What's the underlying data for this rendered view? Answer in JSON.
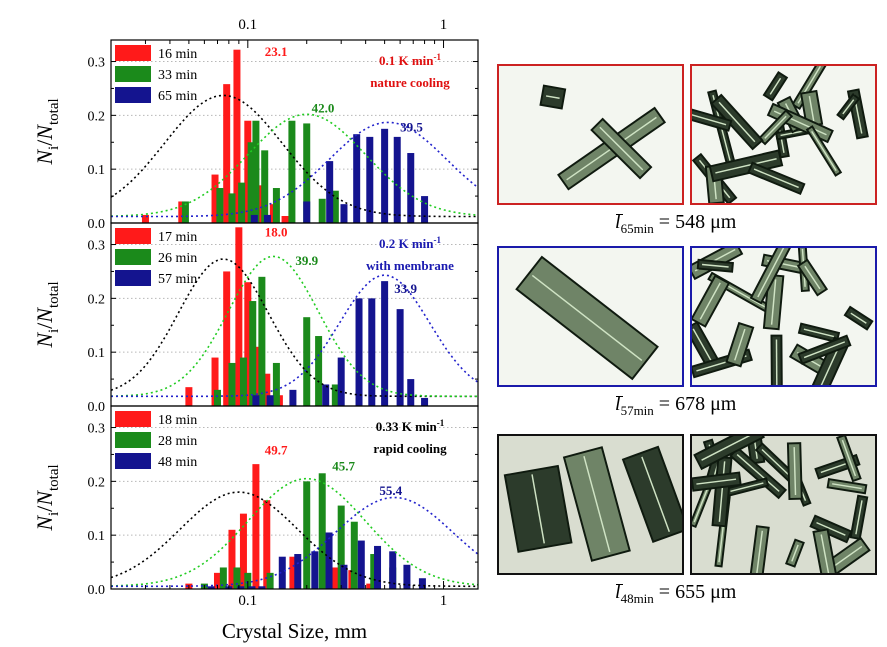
{
  "figure": {
    "x_axis_label": "Crystal Size, mm",
    "y_axis_label": {
      "N": "N",
      "i": "i",
      "slash": "/",
      "N2": "N",
      "total": "total"
    },
    "top_ticks": [
      "0.1",
      "1"
    ],
    "bottom_ticks": [
      "0.1",
      "1"
    ],
    "y_ticks": [
      "0.0",
      "0.1",
      "0.2",
      "0.3"
    ]
  },
  "chart_data": [
    {
      "type": "bar",
      "panel": "top",
      "xscale": "log",
      "xlim": [
        0.02,
        1.5
      ],
      "ylim": [
        0,
        0.34
      ],
      "grid": "horizontal dotted",
      "legend_placement": "top-left",
      "condition_lines": [
        "0.1 K min-1",
        "nature cooling"
      ],
      "series": [
        {
          "name": "16 min",
          "color": "#ff1a1a",
          "x": [
            0.03,
            0.046,
            0.068,
            0.078,
            0.088,
            0.1,
            0.117,
            0.135,
            0.155
          ],
          "values": [
            0.015,
            0.04,
            0.09,
            0.258,
            0.322,
            0.19,
            0.07,
            0.035,
            0.013
          ],
          "peak_label": "23.1"
        },
        {
          "name": "33 min",
          "color": "#1b8a1b",
          "x": [
            0.048,
            0.072,
            0.083,
            0.093,
            0.104,
            0.11,
            0.122,
            0.14,
            0.168,
            0.2,
            0.24,
            0.28
          ],
          "values": [
            0.04,
            0.065,
            0.055,
            0.075,
            0.15,
            0.19,
            0.135,
            0.065,
            0.19,
            0.185,
            0.045,
            0.06
          ],
          "peak_label": "42.0"
        },
        {
          "name": "65 min",
          "color": "#14148f",
          "x": [
            0.108,
            0.126,
            0.2,
            0.262,
            0.31,
            0.36,
            0.42,
            0.5,
            0.58,
            0.68,
            0.8
          ],
          "values": [
            0.015,
            0.015,
            0.04,
            0.115,
            0.035,
            0.165,
            0.16,
            0.175,
            0.16,
            0.13,
            0.05
          ],
          "peak_label": "39.5"
        }
      ],
      "fit_curves": [
        {
          "series": "16 min",
          "color": "#000000",
          "mode": 0.075,
          "width": 0.3,
          "amp": 0.225,
          "base": 0.012
        },
        {
          "series": "33 min",
          "color": "#22cc22",
          "mode": 0.2,
          "width": 0.3,
          "amp": 0.19,
          "base": 0.012
        },
        {
          "series": "65 min",
          "color": "#2323cc",
          "mode": 0.52,
          "width": 0.3,
          "amp": 0.175,
          "base": 0.012
        }
      ]
    },
    {
      "type": "bar",
      "panel": "middle",
      "xscale": "log",
      "xlim": [
        0.02,
        1.5
      ],
      "ylim": [
        0,
        0.34
      ],
      "grid": "horizontal dotted",
      "legend_placement": "top-left",
      "condition_lines": [
        "0.2 K min-1",
        "with membrane"
      ],
      "series": [
        {
          "name": "17 min",
          "color": "#ff1a1a",
          "x": [
            0.05,
            0.068,
            0.078,
            0.09,
            0.1,
            0.112,
            0.125,
            0.145
          ],
          "values": [
            0.035,
            0.09,
            0.25,
            0.332,
            0.23,
            0.11,
            0.06,
            0.02
          ],
          "peak_label": "18.0"
        },
        {
          "name": "26 min",
          "color": "#1b8a1b",
          "x": [
            0.07,
            0.083,
            0.095,
            0.106,
            0.118,
            0.14,
            0.2,
            0.23,
            0.28
          ],
          "values": [
            0.03,
            0.08,
            0.09,
            0.195,
            0.24,
            0.08,
            0.165,
            0.13,
            0.04
          ],
          "peak_label": "39.9"
        },
        {
          "name": "57 min",
          "color": "#14148f",
          "x": [
            0.11,
            0.13,
            0.17,
            0.25,
            0.3,
            0.37,
            0.43,
            0.5,
            0.6,
            0.68,
            0.8
          ],
          "values": [
            0.02,
            0.02,
            0.03,
            0.04,
            0.09,
            0.2,
            0.2,
            0.232,
            0.18,
            0.05,
            0.015
          ],
          "peak_label": "33.9"
        }
      ],
      "fit_curves": [
        {
          "series": "17 min",
          "color": "#000000",
          "mode": 0.075,
          "width": 0.23,
          "amp": 0.255,
          "base": 0.018
        },
        {
          "series": "26 min",
          "color": "#22cc22",
          "mode": 0.135,
          "width": 0.23,
          "amp": 0.26,
          "base": 0.018
        },
        {
          "series": "57 min",
          "color": "#2323cc",
          "mode": 0.5,
          "width": 0.23,
          "amp": 0.225,
          "base": 0.018
        }
      ]
    },
    {
      "type": "bar",
      "panel": "bottom",
      "xscale": "log",
      "xlim": [
        0.02,
        1.5
      ],
      "ylim": [
        0,
        0.34
      ],
      "grid": "horizontal dotted",
      "legend_placement": "top-left",
      "condition_lines": [
        "0.33 K min-1",
        "rapid cooling"
      ],
      "series": [
        {
          "name": "18 min",
          "color": "#ff1a1a",
          "x": [
            0.05,
            0.07,
            0.083,
            0.095,
            0.11,
            0.125,
            0.17,
            0.28,
            0.34,
            0.42
          ],
          "values": [
            0.01,
            0.03,
            0.11,
            0.14,
            0.232,
            0.165,
            0.06,
            0.04,
            0.035,
            0.01
          ],
          "peak_label": "49.7"
        },
        {
          "name": "28 min",
          "color": "#1b8a1b",
          "x": [
            0.06,
            0.075,
            0.088,
            0.1,
            0.13,
            0.2,
            0.24,
            0.3,
            0.35,
            0.44,
            0.55
          ],
          "values": [
            0.01,
            0.04,
            0.04,
            0.03,
            0.03,
            0.2,
            0.215,
            0.155,
            0.125,
            0.065,
            0.04
          ],
          "peak_label": "45.7"
        },
        {
          "name": "48 min",
          "color": "#14148f",
          "x": [
            0.065,
            0.08,
            0.092,
            0.105,
            0.118,
            0.15,
            0.18,
            0.22,
            0.26,
            0.31,
            0.38,
            0.46,
            0.55,
            0.65,
            0.78
          ],
          "values": [
            0.005,
            0.005,
            0.005,
            0.005,
            0.005,
            0.06,
            0.065,
            0.07,
            0.105,
            0.045,
            0.09,
            0.08,
            0.07,
            0.045,
            0.02
          ],
          "peak_label": "55.4"
        }
      ],
      "fit_curves": [
        {
          "series": "18 min",
          "color": "#000000",
          "mode": 0.09,
          "width": 0.3,
          "amp": 0.175,
          "base": 0.005
        },
        {
          "series": "28 min",
          "color": "#22cc22",
          "mode": 0.2,
          "width": 0.3,
          "amp": 0.2,
          "base": 0.005
        },
        {
          "series": "48 min",
          "color": "#2323cc",
          "mode": 0.56,
          "width": 0.3,
          "amp": 0.165,
          "base": 0.005
        }
      ]
    }
  ],
  "photos": {
    "rows": [
      {
        "frame_color": "#cc2222",
        "caption": {
          "symbol": "l",
          "subscript": "65min",
          "value": " = 548 μm"
        }
      },
      {
        "frame_color": "#1a1aaa",
        "caption": {
          "symbol": "l",
          "subscript": "57min",
          "value": " = 678 μm"
        }
      },
      {
        "frame_color": "#111111",
        "caption": {
          "symbol": "l",
          "subscript": "48min",
          "value": " = 655 μm"
        }
      }
    ]
  }
}
